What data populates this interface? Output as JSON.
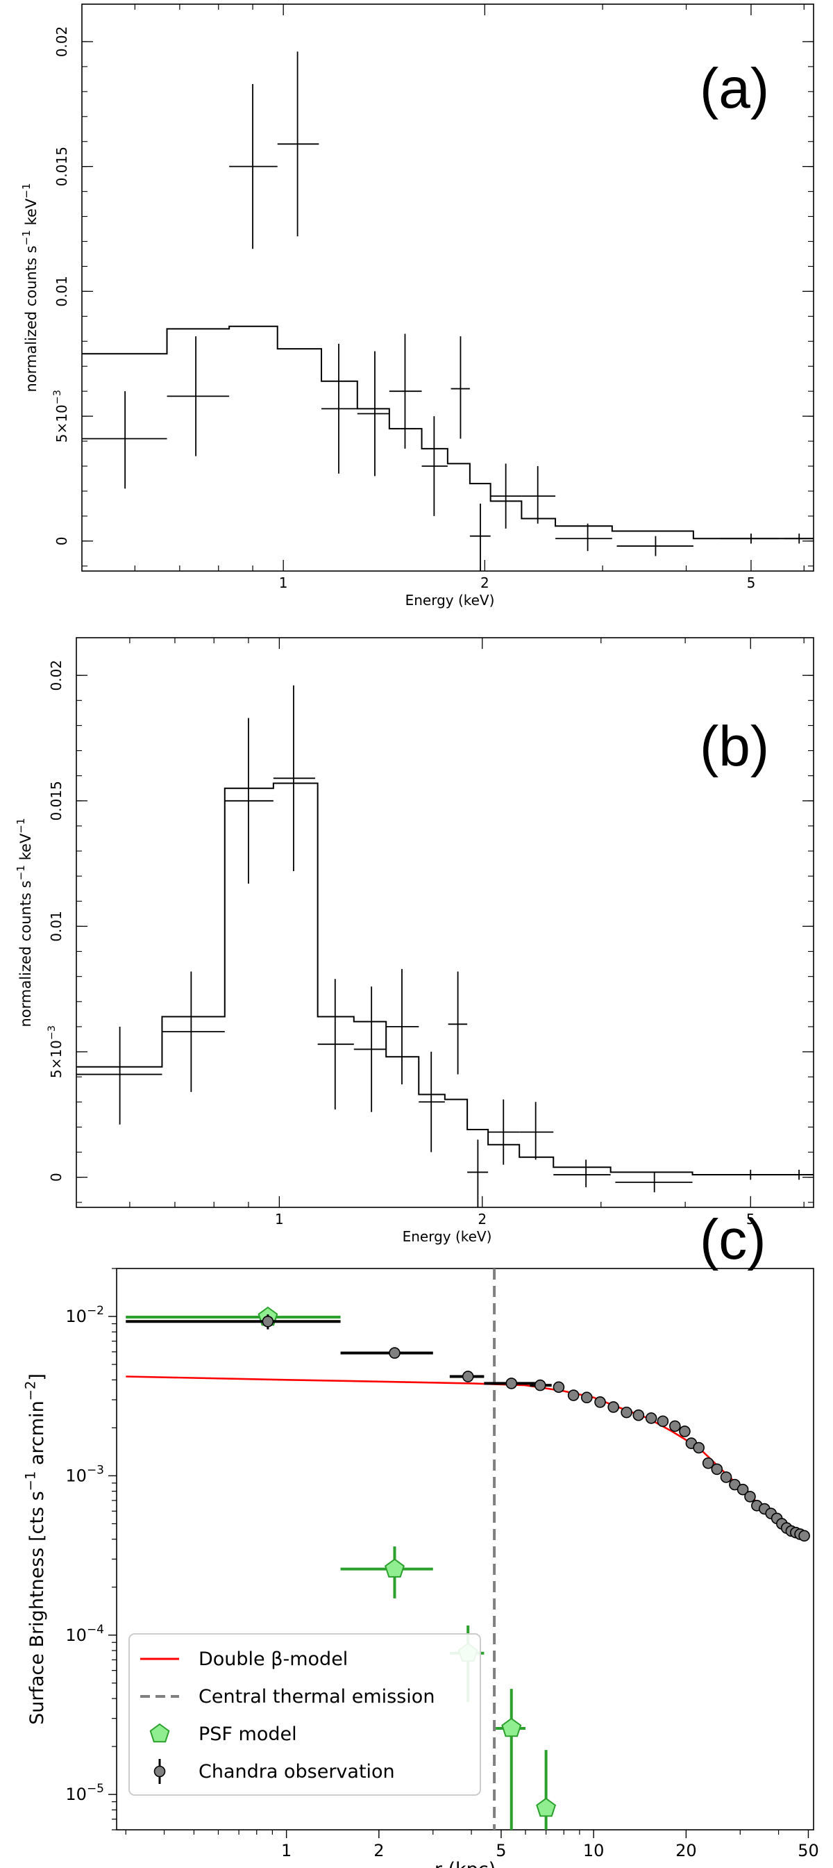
{
  "chart_data": [
    {
      "type": "step-spectrum",
      "panel": "(a)",
      "xlabel": "Energy (keV)",
      "ylabel": "normalized counts s",
      "ylabel_sup1": "−1",
      "ylabel_mid": " keV",
      "ylabel_sup2": "−1",
      "x_scale": "log",
      "xlim": [
        0.5,
        6.2
      ],
      "ylim": [
        -0.0012,
        0.0215
      ],
      "xticks": [
        {
          "v": 1,
          "label": "1"
        },
        {
          "v": 2,
          "label": "2"
        },
        {
          "v": 5,
          "label": "5"
        }
      ],
      "yticks": [
        {
          "v": 0,
          "label": "0"
        },
        {
          "v": 0.005,
          "label": "5×10",
          "sup": "−3"
        },
        {
          "v": 0.01,
          "label": "0.01"
        },
        {
          "v": 0.015,
          "label": "0.015"
        },
        {
          "v": 0.02,
          "label": "0.02"
        }
      ],
      "data": [
        {
          "x": 0.58,
          "xlo": 0.5,
          "xhi": 0.67,
          "y": 0.0041,
          "ylo": 0.0021,
          "yhi": 0.006
        },
        {
          "x": 0.74,
          "xlo": 0.67,
          "xhi": 0.83,
          "y": 0.0058,
          "ylo": 0.0034,
          "yhi": 0.0082
        },
        {
          "x": 0.9,
          "xlo": 0.83,
          "xhi": 0.98,
          "y": 0.015,
          "ylo": 0.0117,
          "yhi": 0.0183
        },
        {
          "x": 1.05,
          "xlo": 0.98,
          "xhi": 1.13,
          "y": 0.0159,
          "ylo": 0.0122,
          "yhi": 0.0196
        },
        {
          "x": 1.21,
          "xlo": 1.14,
          "xhi": 1.29,
          "y": 0.0053,
          "ylo": 0.0027,
          "yhi": 0.0079
        },
        {
          "x": 1.37,
          "xlo": 1.29,
          "xhi": 1.44,
          "y": 0.0051,
          "ylo": 0.0026,
          "yhi": 0.0076
        },
        {
          "x": 1.52,
          "xlo": 1.44,
          "xhi": 1.61,
          "y": 0.006,
          "ylo": 0.0037,
          "yhi": 0.0083
        },
        {
          "x": 1.68,
          "xlo": 1.61,
          "xhi": 1.76,
          "y": 0.003,
          "ylo": 0.001,
          "yhi": 0.005
        },
        {
          "x": 1.84,
          "xlo": 1.78,
          "xhi": 1.9,
          "y": 0.0061,
          "ylo": 0.0041,
          "yhi": 0.0082
        },
        {
          "x": 1.97,
          "xlo": 1.9,
          "xhi": 2.04,
          "y": 0.0002,
          "ylo": -0.0012,
          "yhi": 0.0015
        },
        {
          "x": 2.15,
          "xlo": 2.04,
          "xhi": 2.27,
          "y": 0.0018,
          "ylo": 0.0005,
          "yhi": 0.0031
        },
        {
          "x": 2.4,
          "xlo": 2.27,
          "xhi": 2.55,
          "y": 0.0018,
          "ylo": 0.0007,
          "yhi": 0.003
        },
        {
          "x": 2.85,
          "xlo": 2.55,
          "xhi": 3.1,
          "y": 0.0001,
          "ylo": -0.0004,
          "yhi": 0.0007
        },
        {
          "x": 3.6,
          "xlo": 3.15,
          "xhi": 4.1,
          "y": -0.0002,
          "ylo": -0.0006,
          "yhi": 0.0002
        },
        {
          "x": 5.0,
          "xlo": 4.5,
          "xhi": 5.5,
          "y": 0.0001,
          "ylo": -0.0001,
          "yhi": 0.0003
        },
        {
          "x": 5.9,
          "xlo": 5.6,
          "xhi": 6.2,
          "y": 0.0001,
          "ylo": -0.0001,
          "yhi": 0.0003
        }
      ],
      "model_steps": [
        {
          "x0": 0.5,
          "x1": 0.67,
          "y": 0.0075
        },
        {
          "x0": 0.67,
          "x1": 0.83,
          "y": 0.0085
        },
        {
          "x0": 0.83,
          "x1": 0.98,
          "y": 0.0086
        },
        {
          "x0": 0.98,
          "x1": 1.14,
          "y": 0.0077
        },
        {
          "x0": 1.14,
          "x1": 1.29,
          "y": 0.0064
        },
        {
          "x0": 1.29,
          "x1": 1.44,
          "y": 0.0053
        },
        {
          "x0": 1.44,
          "x1": 1.61,
          "y": 0.0045
        },
        {
          "x0": 1.61,
          "x1": 1.76,
          "y": 0.0037
        },
        {
          "x0": 1.76,
          "x1": 1.9,
          "y": 0.0031
        },
        {
          "x0": 1.9,
          "x1": 2.04,
          "y": 0.0023
        },
        {
          "x0": 2.04,
          "x1": 2.27,
          "y": 0.0016
        },
        {
          "x0": 2.27,
          "x1": 2.55,
          "y": 0.0009
        },
        {
          "x0": 2.55,
          "x1": 3.1,
          "y": 0.0006
        },
        {
          "x0": 3.1,
          "x1": 4.1,
          "y": 0.0004
        },
        {
          "x0": 4.1,
          "x1": 6.2,
          "y": 0.0001
        }
      ]
    },
    {
      "type": "step-spectrum",
      "panel": "(b)",
      "xlabel": "Energy (keV)",
      "ylabel": "normalized counts s",
      "ylabel_sup1": "−1",
      "ylabel_mid": " keV",
      "ylabel_sup2": "−1",
      "x_scale": "log",
      "xlim": [
        0.5,
        6.2
      ],
      "ylim": [
        -0.0012,
        0.0215
      ],
      "xticks": [
        {
          "v": 1,
          "label": "1"
        },
        {
          "v": 2,
          "label": "2"
        },
        {
          "v": 5,
          "label": "5"
        }
      ],
      "yticks": [
        {
          "v": 0,
          "label": "0"
        },
        {
          "v": 0.005,
          "label": "5×10",
          "sup": "−3"
        },
        {
          "v": 0.01,
          "label": "0.01"
        },
        {
          "v": 0.015,
          "label": "0.015"
        },
        {
          "v": 0.02,
          "label": "0.02"
        }
      ],
      "data": [
        {
          "x": 0.58,
          "xlo": 0.5,
          "xhi": 0.67,
          "y": 0.0041,
          "ylo": 0.0021,
          "yhi": 0.006
        },
        {
          "x": 0.74,
          "xlo": 0.67,
          "xhi": 0.83,
          "y": 0.0058,
          "ylo": 0.0034,
          "yhi": 0.0082
        },
        {
          "x": 0.9,
          "xlo": 0.83,
          "xhi": 0.98,
          "y": 0.015,
          "ylo": 0.0117,
          "yhi": 0.0183
        },
        {
          "x": 1.05,
          "xlo": 0.98,
          "xhi": 1.13,
          "y": 0.0159,
          "ylo": 0.0122,
          "yhi": 0.0196
        },
        {
          "x": 1.21,
          "xlo": 1.14,
          "xhi": 1.29,
          "y": 0.0053,
          "ylo": 0.0027,
          "yhi": 0.0079
        },
        {
          "x": 1.37,
          "xlo": 1.29,
          "xhi": 1.44,
          "y": 0.0051,
          "ylo": 0.0026,
          "yhi": 0.0076
        },
        {
          "x": 1.52,
          "xlo": 1.44,
          "xhi": 1.61,
          "y": 0.006,
          "ylo": 0.0037,
          "yhi": 0.0083
        },
        {
          "x": 1.68,
          "xlo": 1.61,
          "xhi": 1.76,
          "y": 0.003,
          "ylo": 0.001,
          "yhi": 0.005
        },
        {
          "x": 1.84,
          "xlo": 1.78,
          "xhi": 1.9,
          "y": 0.0061,
          "ylo": 0.0041,
          "yhi": 0.0082
        },
        {
          "x": 1.97,
          "xlo": 1.9,
          "xhi": 2.04,
          "y": 0.0002,
          "ylo": -0.0012,
          "yhi": 0.0015
        },
        {
          "x": 2.15,
          "xlo": 2.04,
          "xhi": 2.27,
          "y": 0.0018,
          "ylo": 0.0005,
          "yhi": 0.0031
        },
        {
          "x": 2.4,
          "xlo": 2.27,
          "xhi": 2.55,
          "y": 0.0018,
          "ylo": 0.0007,
          "yhi": 0.003
        },
        {
          "x": 2.85,
          "xlo": 2.55,
          "xhi": 3.1,
          "y": 0.0001,
          "ylo": -0.0004,
          "yhi": 0.0007
        },
        {
          "x": 3.6,
          "xlo": 3.15,
          "xhi": 4.1,
          "y": -0.0002,
          "ylo": -0.0006,
          "yhi": 0.0002
        },
        {
          "x": 5.0,
          "xlo": 4.5,
          "xhi": 5.5,
          "y": 0.0001,
          "ylo": -0.0001,
          "yhi": 0.0003
        },
        {
          "x": 5.9,
          "xlo": 5.6,
          "xhi": 6.2,
          "y": 0.0001,
          "ylo": -0.0001,
          "yhi": 0.0003
        }
      ],
      "model_steps": [
        {
          "x0": 0.5,
          "x1": 0.67,
          "y": 0.0044
        },
        {
          "x0": 0.67,
          "x1": 0.83,
          "y": 0.0064
        },
        {
          "x0": 0.83,
          "x1": 0.98,
          "y": 0.0155
        },
        {
          "x0": 0.98,
          "x1": 1.14,
          "y": 0.0157
        },
        {
          "x0": 1.14,
          "x1": 1.29,
          "y": 0.0064
        },
        {
          "x0": 1.29,
          "x1": 1.44,
          "y": 0.0062
        },
        {
          "x0": 1.44,
          "x1": 1.61,
          "y": 0.0048
        },
        {
          "x0": 1.61,
          "x1": 1.76,
          "y": 0.0033
        },
        {
          "x0": 1.76,
          "x1": 1.9,
          "y": 0.0031
        },
        {
          "x0": 1.9,
          "x1": 2.04,
          "y": 0.0019
        },
        {
          "x0": 2.04,
          "x1": 2.27,
          "y": 0.0013
        },
        {
          "x0": 2.27,
          "x1": 2.55,
          "y": 0.0008
        },
        {
          "x0": 2.55,
          "x1": 3.1,
          "y": 0.0004
        },
        {
          "x0": 3.1,
          "x1": 4.1,
          "y": 0.0002
        },
        {
          "x0": 4.1,
          "x1": 6.2,
          "y": 0.0001
        }
      ]
    },
    {
      "type": "scatter",
      "panel": "(c)",
      "xlabel": "r (kpc)",
      "ylabel": "Surface Brightness [cts s",
      "ylabel_sup1": "−1",
      "ylabel_mid": " arcmin",
      "ylabel_sup2": "−2",
      "ylabel_end": "]",
      "x_scale": "log",
      "y_scale": "log",
      "xlim": [
        0.28,
        52
      ],
      "ylim": [
        6e-06,
        0.02
      ],
      "xticks": [
        {
          "v": 1,
          "label": "1"
        },
        {
          "v": 2,
          "label": "2"
        },
        {
          "v": 5,
          "label": "5"
        },
        {
          "v": 10,
          "label": "10"
        },
        {
          "v": 20,
          "label": "20"
        },
        {
          "v": 50,
          "label": "50"
        }
      ],
      "yticks": [
        {
          "v": 1e-05,
          "label": "10",
          "sup": "−5"
        },
        {
          "v": 0.0001,
          "label": "10",
          "sup": "−4"
        },
        {
          "v": 0.001,
          "label": "10",
          "sup": "−3"
        },
        {
          "v": 0.01,
          "label": "10",
          "sup": "−2"
        }
      ],
      "central_thermal_emission_r": 4.75,
      "series": [
        {
          "name": "Chandra observation",
          "color": "#000000",
          "points": [
            {
              "x": 0.87,
              "y": 0.0093,
              "xlo": 0.3,
              "xhi": 1.5,
              "ylo": 0.0083,
              "yhi": 0.0103
            },
            {
              "x": 2.25,
              "y": 0.0059,
              "xlo": 1.5,
              "xhi": 3.0
            },
            {
              "x": 3.9,
              "y": 0.0042,
              "xlo": 3.4,
              "xhi": 4.4
            },
            {
              "x": 5.4,
              "y": 0.0038,
              "xlo": 4.4,
              "xhi": 6.5
            },
            {
              "x": 6.7,
              "y": 0.0037,
              "xlo": 6.2,
              "xhi": 7.3
            },
            {
              "x": 7.7,
              "y": 0.0036
            },
            {
              "x": 8.6,
              "y": 0.0032
            },
            {
              "x": 9.5,
              "y": 0.0031
            },
            {
              "x": 10.5,
              "y": 0.0029
            },
            {
              "x": 11.6,
              "y": 0.0027
            },
            {
              "x": 12.8,
              "y": 0.0025
            },
            {
              "x": 14.0,
              "y": 0.0024
            },
            {
              "x": 15.4,
              "y": 0.0023
            },
            {
              "x": 16.8,
              "y": 0.0022
            },
            {
              "x": 18.4,
              "y": 0.00205
            },
            {
              "x": 19.8,
              "y": 0.0019
            },
            {
              "x": 20.8,
              "y": 0.0016
            },
            {
              "x": 22.0,
              "y": 0.0015
            },
            {
              "x": 23.6,
              "y": 0.0012
            },
            {
              "x": 25.2,
              "y": 0.0011
            },
            {
              "x": 27.0,
              "y": 0.00098
            },
            {
              "x": 28.8,
              "y": 0.00088
            },
            {
              "x": 30.6,
              "y": 0.00082
            },
            {
              "x": 32.3,
              "y": 0.00074
            },
            {
              "x": 34.0,
              "y": 0.00065
            },
            {
              "x": 36.0,
              "y": 0.00062
            },
            {
              "x": 37.8,
              "y": 0.00058
            },
            {
              "x": 39.5,
              "y": 0.00054
            },
            {
              "x": 41.0,
              "y": 0.0005
            },
            {
              "x": 42.5,
              "y": 0.00047
            },
            {
              "x": 44.0,
              "y": 0.00045
            },
            {
              "x": 45.5,
              "y": 0.00044
            },
            {
              "x": 47.0,
              "y": 0.00043
            },
            {
              "x": 48.5,
              "y": 0.00042
            }
          ]
        },
        {
          "name": "PSF model",
          "color": "#2ca02c",
          "fill": "#90ee90",
          "points": [
            {
              "x": 0.87,
              "y": 0.0099,
              "xlo": 0.3,
              "xhi": 1.5
            },
            {
              "x": 2.25,
              "y": 0.00026,
              "xlo": 1.5,
              "xhi": 3.0,
              "ylo": 0.00017,
              "yhi": 0.00036
            },
            {
              "x": 3.9,
              "y": 7.7e-05,
              "xlo": 3.4,
              "xhi": 4.4,
              "ylo": 3.8e-05,
              "yhi": 0.000115
            },
            {
              "x": 5.4,
              "y": 2.6e-05,
              "xlo": 4.8,
              "xhi": 6.0,
              "ylo": 6e-06,
              "yhi": 4.6e-05
            },
            {
              "x": 7.0,
              "y": 8.2e-06,
              "xlo": 6.7,
              "xhi": 7.4,
              "ylo": 6e-06,
              "yhi": 1.9e-05
            }
          ]
        },
        {
          "name": "Double β-model",
          "color": "#ff0000",
          "curve": [
            {
              "x": 0.3,
              "y": 0.0042
            },
            {
              "x": 1.0,
              "y": 0.004
            },
            {
              "x": 2.0,
              "y": 0.0039
            },
            {
              "x": 4.0,
              "y": 0.0038
            },
            {
              "x": 6.0,
              "y": 0.0037
            },
            {
              "x": 8.0,
              "y": 0.0034
            },
            {
              "x": 10.0,
              "y": 0.0031
            },
            {
              "x": 12.0,
              "y": 0.0027
            },
            {
              "x": 15.0,
              "y": 0.0023
            },
            {
              "x": 18.0,
              "y": 0.0019
            },
            {
              "x": 22.0,
              "y": 0.0015
            },
            {
              "x": 26.0,
              "y": 0.0011
            },
            {
              "x": 30.0,
              "y": 0.00085
            },
            {
              "x": 35.0,
              "y": 0.00065
            },
            {
              "x": 40.0,
              "y": 0.00052
            },
            {
              "x": 45.0,
              "y": 0.00046
            },
            {
              "x": 49.0,
              "y": 0.00043
            }
          ]
        }
      ],
      "legend": [
        {
          "label": "Double β-model",
          "kind": "line",
          "color": "#ff0000"
        },
        {
          "label": "Central thermal emission",
          "kind": "dash",
          "color": "#808080"
        },
        {
          "label": "PSF model",
          "kind": "pentagon",
          "color": "#2ca02c",
          "fill": "#90ee90"
        },
        {
          "label": "Chandra observation",
          "kind": "circle",
          "color": "#000000",
          "fill": "#808080"
        }
      ]
    }
  ]
}
